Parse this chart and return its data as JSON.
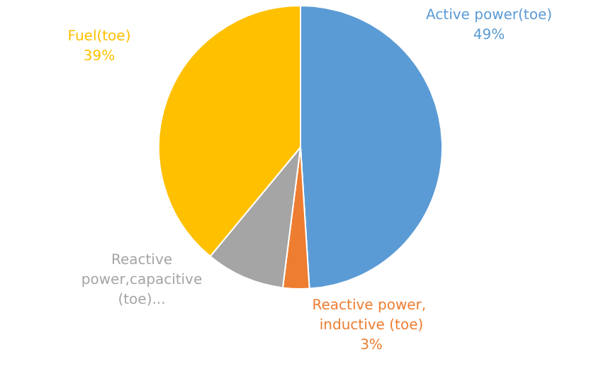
{
  "chart_data": {
    "type": "pie",
    "categories": [
      "Active power(toe)",
      "Reactive power, inductive (toe)",
      "Reactive power,capacitive (toe)...",
      "Fuel(toe)"
    ],
    "values": [
      49,
      3,
      9,
      39
    ],
    "value_labels": [
      "49%",
      "3%",
      null,
      "39%"
    ],
    "colors": [
      "#5b9bd5",
      "#ed7d31",
      "#a5a5a5",
      "#ffc000"
    ],
    "legend": false
  }
}
